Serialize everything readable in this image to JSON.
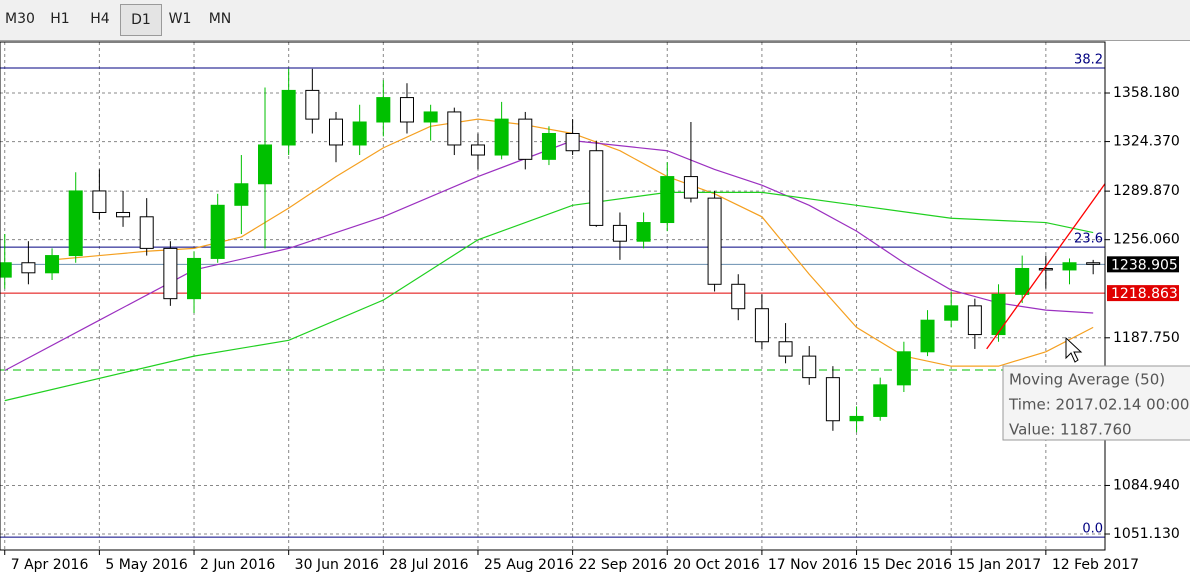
{
  "toolbar": {
    "buttons": [
      "M30",
      "H1",
      "H4",
      "D1",
      "W1",
      "MN"
    ],
    "active": "D1"
  },
  "chart_data": {
    "type": "candlestick",
    "x": [
      0,
      1,
      2,
      3,
      4,
      5,
      6,
      7,
      8,
      9,
      10,
      11,
      12,
      13,
      14,
      15,
      16,
      17,
      18,
      19,
      20,
      21,
      22,
      23,
      24,
      25,
      26,
      27,
      28,
      29,
      30,
      31,
      32,
      33,
      34,
      35,
      36,
      37,
      38,
      39,
      40,
      41,
      42,
      43,
      44,
      45,
      46
    ],
    "open": [
      1230,
      1240,
      1233,
      1245,
      1290,
      1275,
      1272,
      1250,
      1215,
      1243,
      1280,
      1295,
      1322,
      1360,
      1340,
      1322,
      1338,
      1355,
      1338,
      1345,
      1322,
      1315,
      1340,
      1312,
      1330,
      1318,
      1266,
      1255,
      1268,
      1300,
      1285,
      1225,
      1208,
      1185,
      1175,
      1160,
      1130,
      1133,
      1155,
      1178,
      1200,
      1210,
      1190,
      1218,
      1236,
      1235,
      1240
    ],
    "high": [
      1260,
      1255,
      1250,
      1303,
      1305,
      1290,
      1285,
      1255,
      1248,
      1288,
      1315,
      1362,
      1375,
      1375,
      1345,
      1350,
      1367,
      1365,
      1350,
      1348,
      1330,
      1352,
      1345,
      1335,
      1340,
      1325,
      1275,
      1275,
      1310,
      1338,
      1290,
      1232,
      1218,
      1198,
      1182,
      1168,
      1140,
      1160,
      1185,
      1207,
      1220,
      1215,
      1225,
      1245,
      1245,
      1243,
      1242
    ],
    "low": [
      1222,
      1225,
      1228,
      1240,
      1270,
      1265,
      1245,
      1210,
      1205,
      1240,
      1260,
      1250,
      1315,
      1330,
      1310,
      1315,
      1328,
      1330,
      1325,
      1315,
      1305,
      1312,
      1305,
      1308,
      1315,
      1265,
      1242,
      1250,
      1262,
      1282,
      1220,
      1200,
      1180,
      1170,
      1155,
      1123,
      1122,
      1130,
      1150,
      1175,
      1195,
      1180,
      1185,
      1212,
      1222,
      1225,
      1232
    ],
    "close": [
      1240,
      1233,
      1245,
      1290,
      1275,
      1272,
      1250,
      1215,
      1243,
      1280,
      1295,
      1322,
      1360,
      1340,
      1322,
      1338,
      1355,
      1338,
      1345,
      1322,
      1315,
      1340,
      1312,
      1330,
      1318,
      1266,
      1255,
      1268,
      1300,
      1285,
      1225,
      1208,
      1185,
      1175,
      1160,
      1130,
      1133,
      1155,
      1178,
      1200,
      1210,
      1190,
      1218,
      1236,
      1235,
      1240,
      1238.905
    ],
    "up_color": "#00c000",
    "down_color": "#000000",
    "series": [
      {
        "color": "#f5a020",
        "x": [
          2,
          4,
          6,
          8,
          10,
          12,
          14,
          16,
          18,
          20,
          22,
          24,
          26,
          28,
          30,
          32,
          34,
          36,
          38,
          40,
          42,
          44,
          46
        ],
        "values": [
          1242,
          1245,
          1248,
          1250,
          1258,
          1278,
          1300,
          1320,
          1335,
          1340,
          1336,
          1330,
          1318,
          1300,
          1288,
          1272,
          1232,
          1195,
          1175,
          1168,
          1168,
          1178,
          1195
        ]
      },
      {
        "color": "#9b30c0",
        "x": [
          0,
          4,
          8,
          12,
          16,
          20,
          24,
          28,
          30,
          32,
          34,
          36,
          38,
          40,
          42,
          44,
          46
        ],
        "values": [
          1165,
          1200,
          1235,
          1250,
          1272,
          1300,
          1325,
          1318,
          1305,
          1294,
          1280,
          1262,
          1240,
          1221,
          1212,
          1207,
          1205
        ]
      },
      {
        "color": "#20d020",
        "x": [
          0,
          8,
          12,
          16,
          20,
          24,
          28,
          32,
          36,
          40,
          44,
          46
        ],
        "values": [
          1144,
          1175,
          1186,
          1214,
          1256,
          1280,
          1289,
          1289,
          1280,
          1271,
          1268,
          1261
        ]
      }
    ],
    "trendline": {
      "color": "#ff0000",
      "x": [
        41.5,
        46.5
      ],
      "values": [
        1180,
        1295
      ]
    },
    "levels": [
      {
        "label": "38.2",
        "value": 1375.6,
        "color": "#000080"
      },
      {
        "label": "23.6",
        "value": 1250.9,
        "color": "#000080"
      },
      {
        "label": "0.0",
        "value": 1049.0,
        "color": "#000080"
      }
    ],
    "price_lines": [
      {
        "value": 1238.905,
        "color": "#000000",
        "line_color": "#6a8fb0"
      },
      {
        "value": 1218.863,
        "color": "#e00000",
        "line_color": "#e00000"
      }
    ],
    "dashed_line": {
      "value": 1165.3,
      "color": "#00c000"
    },
    "xlim": [
      -0.2,
      46.5
    ],
    "xticks": [
      {
        "value": 0,
        "label": "7 Apr 2016"
      },
      {
        "value": 4,
        "label": "5 May 2016"
      },
      {
        "value": 8,
        "label": "2 Jun 2016"
      },
      {
        "value": 12,
        "label": "30 Jun 2016"
      },
      {
        "value": 16,
        "label": "28 Jul 2016"
      },
      {
        "value": 20,
        "label": "25 Aug 2016"
      },
      {
        "value": 24,
        "label": "22 Sep 2016"
      },
      {
        "value": 28,
        "label": "20 Oct 2016"
      },
      {
        "value": 32,
        "label": "17 Nov 2016"
      },
      {
        "value": 36,
        "label": "15 Dec 2016"
      },
      {
        "value": 40,
        "label": "15 Jan 2017"
      },
      {
        "value": 44,
        "label": "12 Feb 2017"
      }
    ],
    "ylim": [
      1040,
      1393.7
    ],
    "yticks": [
      {
        "value": 1358.18,
        "label": "1358.180"
      },
      {
        "value": 1324.37,
        "label": "1324.370"
      },
      {
        "value": 1289.87,
        "label": "1289.870"
      },
      {
        "value": 1256.06,
        "label": "1256.060"
      },
      {
        "value": 1187.75,
        "label": "1187.750"
      },
      {
        "value": 1084.94,
        "label": "1084.940"
      },
      {
        "value": 1051.13,
        "label": "1051.130"
      }
    ],
    "grid": true,
    "tooltip": {
      "title": "Moving Average (50)",
      "time": "Time: 2017.02.14 00:00",
      "value": "Value: 1187.760"
    }
  }
}
